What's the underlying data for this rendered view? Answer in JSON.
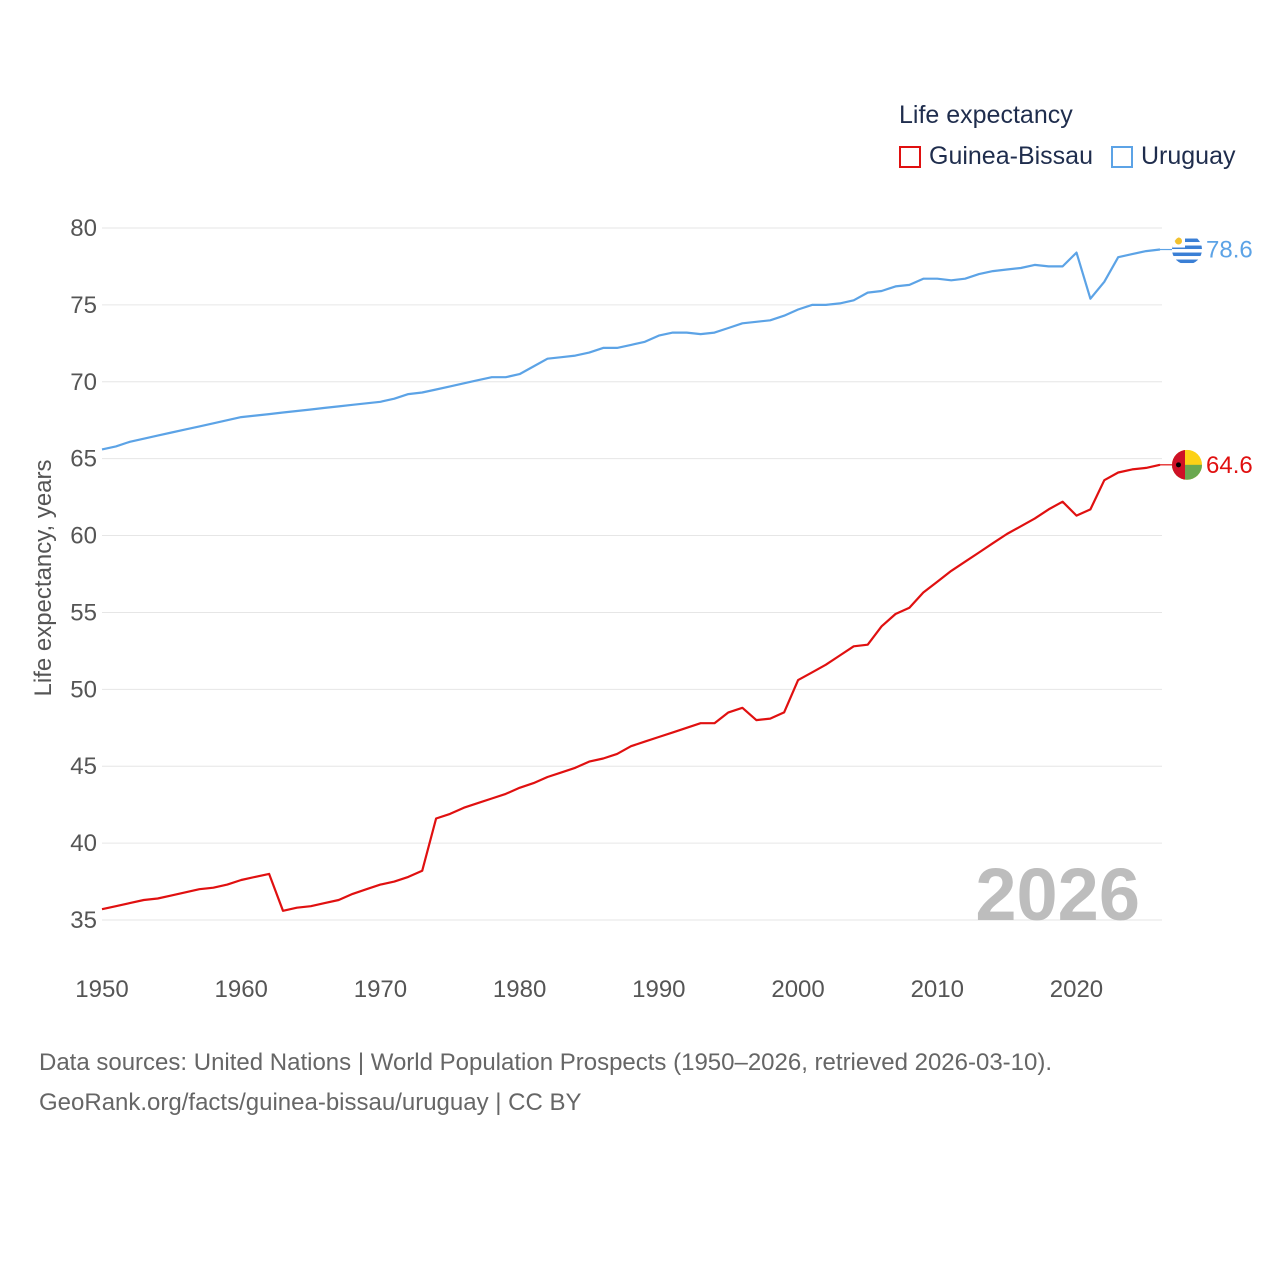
{
  "legend": {
    "title": "Life expectancy",
    "items": [
      {
        "label": "Guinea-Bissau",
        "color": "#e01010"
      },
      {
        "label": "Uruguay",
        "color": "#5ca3e6"
      }
    ]
  },
  "footer": {
    "line1": "Data sources: United Nations | World Population Prospects (1950–2026, retrieved 2026-03-10).",
    "line2": "GeoRank.org/facts/guinea-bissau/uruguay | CC BY"
  },
  "chart_data": {
    "type": "line",
    "title": "Life expectancy",
    "xlabel": "",
    "ylabel": "Life expectancy, years",
    "year_label": "2026",
    "xlim": [
      1950,
      2026
    ],
    "ylim": [
      32.5,
      80
    ],
    "xticks": [
      1950,
      1960,
      1970,
      1980,
      1990,
      2000,
      2010,
      2020
    ],
    "yticks": [
      35,
      40,
      45,
      50,
      55,
      60,
      65,
      70,
      75,
      80
    ],
    "grid": true,
    "x": [
      1950,
      1951,
      1952,
      1953,
      1954,
      1955,
      1956,
      1957,
      1958,
      1959,
      1960,
      1961,
      1962,
      1963,
      1964,
      1965,
      1966,
      1967,
      1968,
      1969,
      1970,
      1971,
      1972,
      1973,
      1974,
      1975,
      1976,
      1977,
      1978,
      1979,
      1980,
      1981,
      1982,
      1983,
      1984,
      1985,
      1986,
      1987,
      1988,
      1989,
      1990,
      1991,
      1992,
      1993,
      1994,
      1995,
      1996,
      1997,
      1998,
      1999,
      2000,
      2001,
      2002,
      2003,
      2004,
      2005,
      2006,
      2007,
      2008,
      2009,
      2010,
      2011,
      2012,
      2013,
      2014,
      2015,
      2016,
      2017,
      2018,
      2019,
      2020,
      2021,
      2022,
      2023,
      2024,
      2025,
      2026
    ],
    "series": [
      {
        "name": "Guinea-Bissau",
        "color": "#e01010",
        "end_label": "64.6",
        "values": [
          35.7,
          35.9,
          36.1,
          36.3,
          36.4,
          36.6,
          36.8,
          37.0,
          37.1,
          37.3,
          37.6,
          37.8,
          38.0,
          35.6,
          35.8,
          35.9,
          36.1,
          36.3,
          36.7,
          37.0,
          37.3,
          37.5,
          37.8,
          38.2,
          41.6,
          41.9,
          42.3,
          42.6,
          42.9,
          43.2,
          43.6,
          43.9,
          44.3,
          44.6,
          44.9,
          45.3,
          45.5,
          45.8,
          46.3,
          46.6,
          46.9,
          47.2,
          47.5,
          47.8,
          47.8,
          48.5,
          48.8,
          48.0,
          48.1,
          48.5,
          50.6,
          51.1,
          51.6,
          52.2,
          52.8,
          52.9,
          54.1,
          54.9,
          55.3,
          56.3,
          57.0,
          57.7,
          58.3,
          58.9,
          59.5,
          60.1,
          60.6,
          61.1,
          61.7,
          62.2,
          61.3,
          61.7,
          63.6,
          64.1,
          64.3,
          64.4,
          64.6
        ]
      },
      {
        "name": "Uruguay",
        "color": "#5ca3e6",
        "end_label": "78.6",
        "values": [
          65.6,
          65.8,
          66.1,
          66.3,
          66.5,
          66.7,
          66.9,
          67.1,
          67.3,
          67.5,
          67.7,
          67.8,
          67.9,
          68.0,
          68.1,
          68.2,
          68.3,
          68.4,
          68.5,
          68.6,
          68.7,
          68.9,
          69.2,
          69.3,
          69.5,
          69.7,
          69.9,
          70.1,
          70.3,
          70.3,
          70.5,
          71.0,
          71.5,
          71.6,
          71.7,
          71.9,
          72.2,
          72.2,
          72.4,
          72.6,
          73.0,
          73.2,
          73.2,
          73.1,
          73.2,
          73.5,
          73.8,
          73.9,
          74.0,
          74.3,
          74.7,
          75.0,
          75.0,
          75.1,
          75.3,
          75.8,
          75.9,
          76.2,
          76.3,
          76.7,
          76.7,
          76.6,
          76.7,
          77.0,
          77.2,
          77.3,
          77.4,
          77.6,
          77.5,
          77.5,
          78.4,
          75.4,
          76.5,
          78.1,
          78.3,
          78.5,
          78.6
        ]
      }
    ]
  }
}
